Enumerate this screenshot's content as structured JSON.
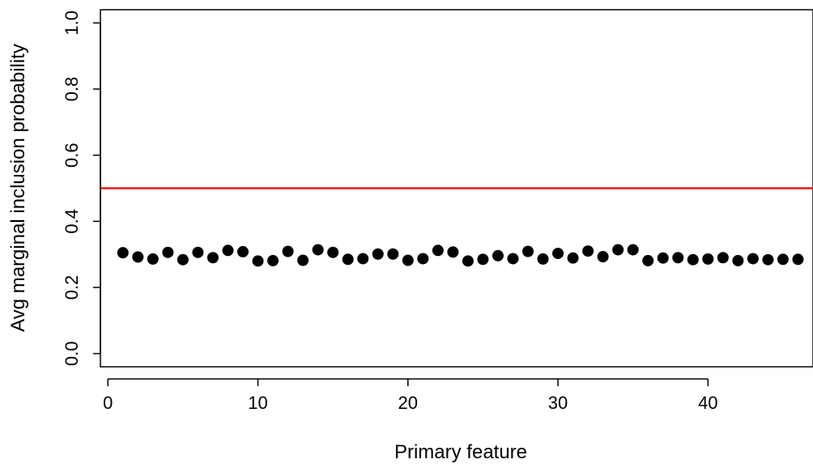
{
  "chart_data": {
    "type": "scatter",
    "xlabel": "Primary feature",
    "ylabel": "Avg marginal inclusion probability",
    "xlim": [
      -0.5,
      47
    ],
    "ylim": [
      -0.04,
      1.04
    ],
    "xticks": [
      0,
      10,
      20,
      30,
      40
    ],
    "yticks": [
      0.0,
      0.2,
      0.4,
      0.6,
      0.8,
      1.0
    ],
    "xtick_labels": [
      "0",
      "10",
      "20",
      "30",
      "40"
    ],
    "ytick_labels": [
      "0.0",
      "0.2",
      "0.4",
      "0.6",
      "0.8",
      "1.0"
    ],
    "reference_line": {
      "y": 0.5,
      "color": "#e31a1c"
    },
    "point_color": "#000000",
    "x": [
      1,
      2,
      3,
      4,
      5,
      6,
      7,
      8,
      9,
      10,
      11,
      12,
      13,
      14,
      15,
      16,
      17,
      18,
      19,
      20,
      21,
      22,
      23,
      24,
      25,
      26,
      27,
      28,
      29,
      30,
      31,
      32,
      33,
      34,
      35,
      36,
      37,
      38,
      39,
      40,
      41,
      42,
      43,
      44,
      45,
      46
    ],
    "y": [
      0.305,
      0.292,
      0.286,
      0.306,
      0.284,
      0.306,
      0.29,
      0.312,
      0.308,
      0.28,
      0.281,
      0.309,
      0.282,
      0.314,
      0.306,
      0.285,
      0.287,
      0.301,
      0.301,
      0.282,
      0.287,
      0.312,
      0.307,
      0.28,
      0.285,
      0.296,
      0.287,
      0.309,
      0.286,
      0.303,
      0.289,
      0.31,
      0.293,
      0.314,
      0.314,
      0.281,
      0.289,
      0.29,
      0.284,
      0.286,
      0.29,
      0.281,
      0.287,
      0.284,
      0.285,
      0.285
    ],
    "grid": false,
    "legend": "none"
  }
}
